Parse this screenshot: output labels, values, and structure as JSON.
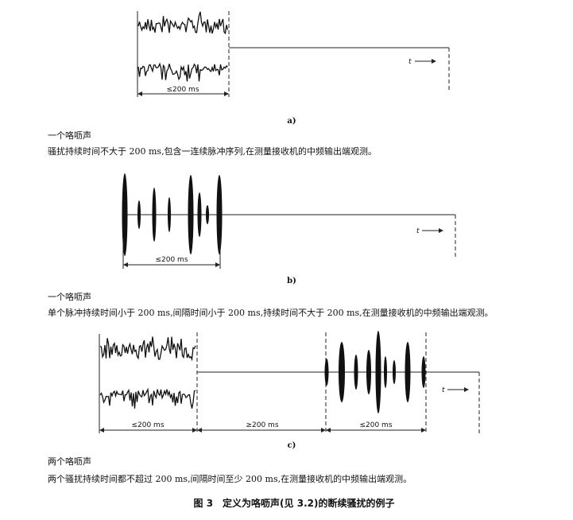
{
  "figure": {
    "a": {
      "sublabel": "a)",
      "dimension_label": "≤200 ms",
      "time_label": "t",
      "title": "一个咯呖声",
      "description": "骚扰持续时间不大于 200 ms,包含一连续脉冲序列,在测量接收机的中频输出端观测。"
    },
    "b": {
      "sublabel": "b)",
      "dimension_label": "≤200 ms",
      "time_label": "t",
      "title": "一个咯呖声",
      "description": "单个脉冲持续时间小于 200 ms,间隔时间小于 200 ms,持续时间不大于 200 ms,在测量接收机的中频输出端观测。"
    },
    "c": {
      "sublabel": "c)",
      "dimension_labels": [
        "≤200 ms",
        "≥200 ms",
        "≤200 ms"
      ],
      "time_label": "t",
      "title": "两个咯呖声",
      "description": "两个骚扰持续时间都不超过 200 ms,间隔时间至少 200 ms,在测量接收机的中频输出端观测。"
    },
    "caption": "图 3　定义为咯呖声(见 3.2)的断续骚扰的例子"
  }
}
